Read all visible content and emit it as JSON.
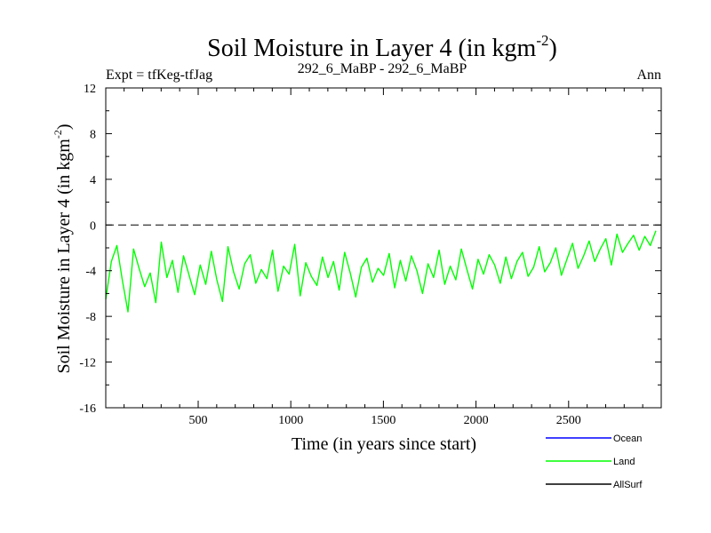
{
  "chart_data": {
    "type": "line",
    "title": "Soil Moisture in Layer 4 (in kgm",
    "title_superscript": "-2",
    "title_suffix": ")",
    "subtitle_left": "Expt = tfKeg-tfJag",
    "subtitle_center": "292_6_MaBP - 292_6_MaBP",
    "subtitle_right": "Ann",
    "xlabel": "Time (in years since start)",
    "ylabel": "Soil Moisture in Layer 4 (in kgm",
    "ylabel_superscript": "-2",
    "ylabel_suffix": ")",
    "xlim": [
      1,
      3000
    ],
    "ylim": [
      -16,
      12
    ],
    "x_ticks": [
      500,
      1000,
      1500,
      2000,
      2500
    ],
    "y_ticks": [
      -16,
      -12,
      -8,
      -4,
      0,
      4,
      8,
      12
    ],
    "zero_line": true,
    "grid": false,
    "legend_placement": "bottom-right",
    "series": [
      {
        "name": "Ocean",
        "color": "#0000ff",
        "values": []
      },
      {
        "name": "Land",
        "color": "#00ff00",
        "x_start": 1,
        "x_step": 30,
        "values": [
          -6.5,
          -3.2,
          -1.8,
          -4.9,
          -7.6,
          -2.1,
          -3.8,
          -5.4,
          -4.2,
          -6.8,
          -1.5,
          -4.6,
          -3.1,
          -5.9,
          -2.7,
          -4.4,
          -6.1,
          -3.5,
          -5.2,
          -2.3,
          -4.8,
          -6.7,
          -1.9,
          -4.1,
          -5.6,
          -3.4,
          -2.6,
          -5.1,
          -3.9,
          -4.7,
          -2.2,
          -5.8,
          -3.6,
          -4.3,
          -1.7,
          -6.2,
          -3.3,
          -4.5,
          -5.3,
          -2.8,
          -4.6,
          -3.2,
          -5.7,
          -2.4,
          -4.2,
          -6.3,
          -3.7,
          -2.9,
          -5.0,
          -3.8,
          -4.4,
          -2.5,
          -5.5,
          -3.1,
          -4.9,
          -2.7,
          -4.0,
          -6.0,
          -3.4,
          -4.6,
          -2.2,
          -5.2,
          -3.6,
          -4.8,
          -2.1,
          -3.9,
          -5.6,
          -3.0,
          -4.3,
          -2.6,
          -3.5,
          -5.1,
          -2.8,
          -4.7,
          -3.2,
          -2.4,
          -4.5,
          -3.7,
          -1.9,
          -4.1,
          -3.3,
          -2.0,
          -4.4,
          -3.0,
          -1.6,
          -3.8,
          -2.7,
          -1.4,
          -3.2,
          -2.1,
          -1.2,
          -3.5,
          -0.8,
          -2.4,
          -1.6,
          -0.9,
          -2.2,
          -1.0,
          -1.8,
          -0.5
        ]
      },
      {
        "name": "AllSurf",
        "color": "#000000",
        "values": []
      }
    ]
  }
}
